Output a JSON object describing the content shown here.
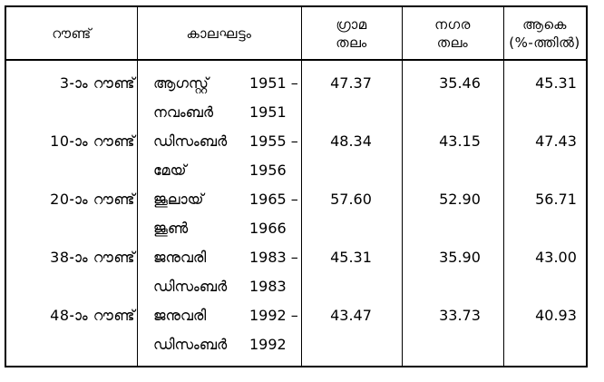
{
  "headers": {
    "round": "റൗണ്ട്",
    "period": "കാലഘട്ടം",
    "rural_line1": "ഗ്രാമ",
    "rural_line2": "തലം",
    "urban_line1": "നഗര",
    "urban_line2": "തലം",
    "total_line1": "ആകെ",
    "total_line2": "(%-ത്തിൽ)"
  },
  "rows": [
    {
      "round": "3-ാം റൗണ്ട്",
      "period_start": "ആഗസ്റ്റ്",
      "year_start": "1951 –",
      "period_end": "നവംബർ",
      "year_end": "1951",
      "rural": "47.37",
      "urban": "35.46",
      "total": "45.31"
    },
    {
      "round": "10-ാം റൗണ്ട്",
      "period_start": "ഡിസംബർ",
      "year_start": "1955 –",
      "period_end": "മേയ്",
      "year_end": "1956",
      "rural": "48.34",
      "urban": "43.15",
      "total": "47.43"
    },
    {
      "round": "20-ാം റൗണ്ട്",
      "period_start": "ജൂലായ്",
      "year_start": "1965 –",
      "period_end": "ജൂൺ",
      "year_end": "1966",
      "rural": "57.60",
      "urban": "52.90",
      "total": "56.71"
    },
    {
      "round": "38-ാം റൗണ്ട്",
      "period_start": "ജനുവരി",
      "year_start": "1983 –",
      "period_end": "ഡിസംബർ",
      "year_end": "1983",
      "rural": "45.31",
      "urban": "35.90",
      "total": "43.00"
    },
    {
      "round": "48-ാം റൗണ്ട്",
      "period_start": "ജനുവരി",
      "year_start": "1992 –",
      "period_end": "ഡിസംബർ",
      "year_end": "1992",
      "rural": "43.47",
      "urban": "33.73",
      "total": "40.93"
    }
  ]
}
